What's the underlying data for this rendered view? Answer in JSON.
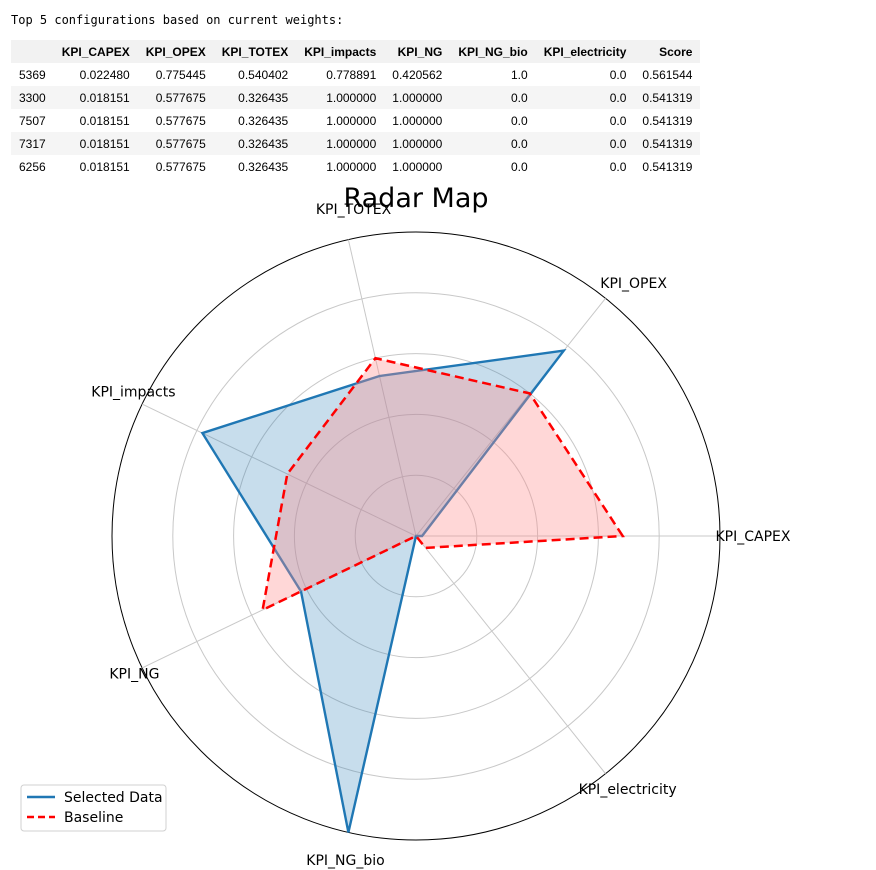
{
  "caption": "Top 5 configurations based on current weights:",
  "table": {
    "columns": [
      "",
      "KPI_CAPEX",
      "KPI_OPEX",
      "KPI_TOTEX",
      "KPI_impacts",
      "KPI_NG",
      "KPI_NG_bio",
      "KPI_electricity",
      "Score"
    ],
    "rows": [
      [
        "5369",
        "0.022480",
        "0.775445",
        "0.540402",
        "0.778891",
        "0.420562",
        "1.0",
        "0.0",
        "0.561544"
      ],
      [
        "3300",
        "0.018151",
        "0.577675",
        "0.326435",
        "1.000000",
        "1.000000",
        "0.0",
        "0.0",
        "0.541319"
      ],
      [
        "7507",
        "0.018151",
        "0.577675",
        "0.326435",
        "1.000000",
        "1.000000",
        "0.0",
        "0.0",
        "0.541319"
      ],
      [
        "7317",
        "0.018151",
        "0.577675",
        "0.326435",
        "1.000000",
        "1.000000",
        "0.0",
        "0.0",
        "0.541319"
      ],
      [
        "6256",
        "0.018151",
        "0.577675",
        "0.326435",
        "1.000000",
        "1.000000",
        "0.0",
        "0.0",
        "0.541319"
      ]
    ]
  },
  "chart_data": {
    "type": "radar",
    "title": "Radar Map",
    "axes": [
      "KPI_CAPEX",
      "KPI_OPEX",
      "KPI_TOTEX",
      "KPI_impacts",
      "KPI_NG",
      "KPI_NG_bio",
      "KPI_electricity"
    ],
    "range": [
      0,
      1
    ],
    "grid": true,
    "series": [
      {
        "name": "Selected Data",
        "values": [
          0.02,
          0.78,
          0.54,
          0.78,
          0.42,
          1.0,
          0.0
        ],
        "color": "#1f77b4",
        "fill": "#1f77b4",
        "line_style": "solid"
      },
      {
        "name": "Baseline",
        "values": [
          0.68,
          0.6,
          0.6,
          0.47,
          0.56,
          0.0,
          0.05
        ],
        "color": "#ff0000",
        "fill": "#ff8c8c",
        "line_style": "dashed"
      }
    ],
    "legend_position": "lower-left"
  }
}
